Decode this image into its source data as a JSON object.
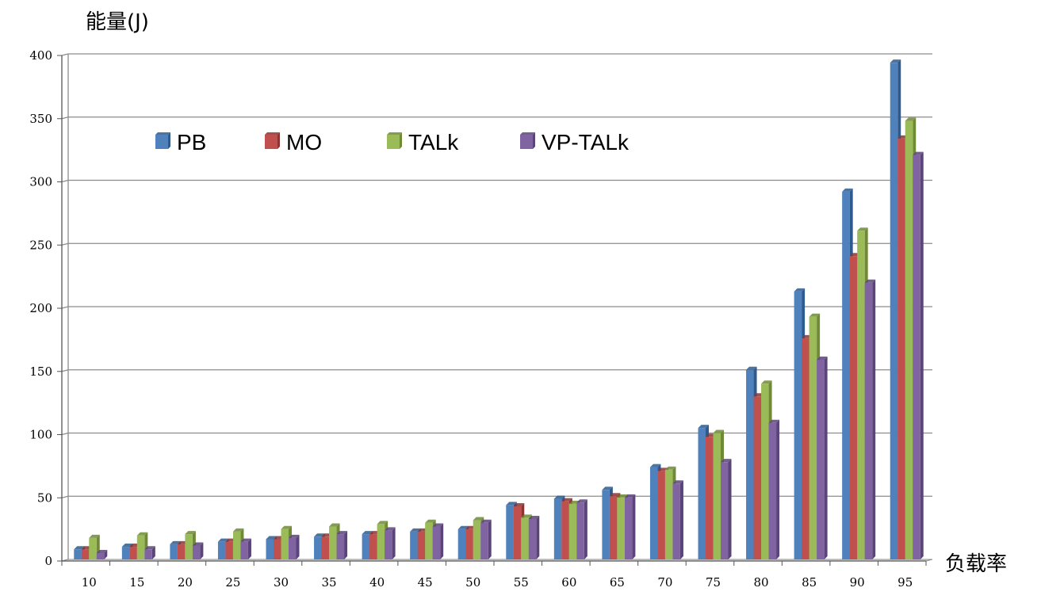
{
  "chart_data": {
    "type": "bar",
    "title": "",
    "ylabel": "能量(J)",
    "xlabel": "负载率",
    "ylim": [
      0,
      400
    ],
    "yticks": [
      "0",
      "50",
      "100",
      "150",
      "200",
      "250",
      "300",
      "350",
      "400"
    ],
    "categories": [
      "10",
      "15",
      "20",
      "25",
      "30",
      "35",
      "40",
      "45",
      "50",
      "55",
      "60",
      "65",
      "70",
      "75",
      "80",
      "85",
      "90",
      "95"
    ],
    "grid": true,
    "legend_position": "top-left",
    "series": [
      {
        "name": "PB",
        "color": "#4F81BD",
        "side": "#2E5A8E",
        "values": [
          8,
          10,
          12,
          14,
          16,
          18,
          20,
          22,
          24,
          43,
          48,
          55,
          73,
          104,
          150,
          212,
          291,
          393
        ]
      },
      {
        "name": "MO",
        "color": "#C0504D",
        "side": "#8E3331",
        "values": [
          8,
          10,
          12,
          14,
          16,
          18,
          20,
          22,
          24,
          42,
          46,
          50,
          70,
          97,
          129,
          175,
          240,
          333
        ]
      },
      {
        "name": "TALk",
        "color": "#9BBB59",
        "side": "#6E8A36",
        "values": [
          17,
          19,
          20,
          22,
          24,
          26,
          28,
          29,
          31,
          33,
          44,
          49,
          71,
          100,
          139,
          192,
          260,
          347
        ]
      },
      {
        "name": "VP-TALk",
        "color": "#8064A2",
        "side": "#5B4479",
        "values": [
          5,
          8,
          11,
          14,
          17,
          20,
          23,
          26,
          29,
          32,
          45,
          49,
          60,
          77,
          108,
          158,
          219,
          320
        ]
      }
    ]
  }
}
